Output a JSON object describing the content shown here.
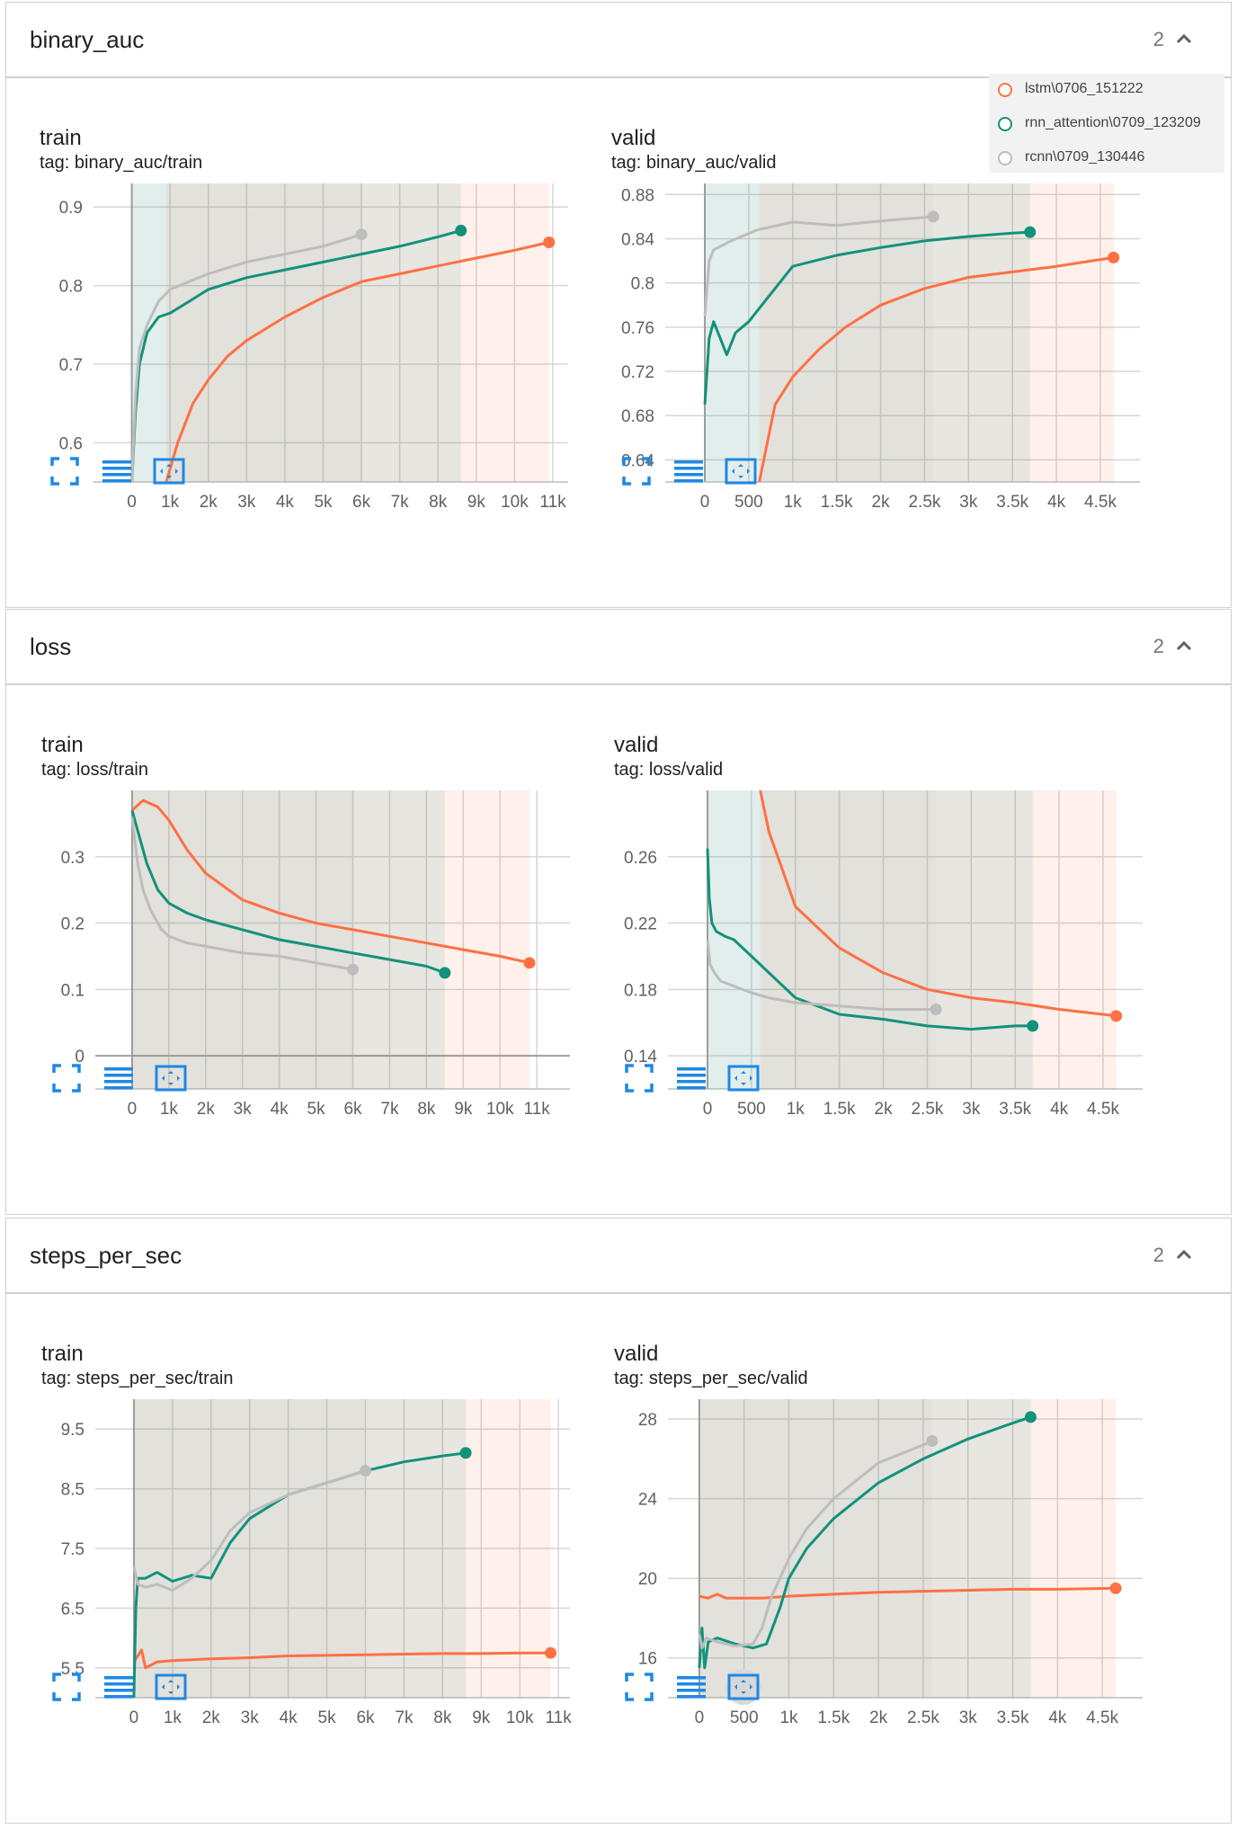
{
  "legend": [
    {
      "label": "lstm\\0706_151222",
      "color": "#ff7043"
    },
    {
      "label": "rnn_attention\\0709_123209",
      "color": "#12927a"
    },
    {
      "label": "rcnn\\0709_130446",
      "color": "#bdbdbd"
    }
  ],
  "buttons": {
    "icons": [
      "expand-icon",
      "list-lines-icon",
      "fit-domain-icon"
    ]
  },
  "sections": [
    {
      "title": "binary_auc",
      "count": "2"
    },
    {
      "title": "loss",
      "count": "2"
    },
    {
      "title": "steps_per_sec",
      "count": "2"
    }
  ],
  "chart_data": [
    {
      "type": "line",
      "title": "train",
      "tag": "tag: binary_auc/train",
      "xlim": [
        -1000,
        11400
      ],
      "ylim": [
        0.55,
        0.93
      ],
      "xticks": [
        0,
        1000,
        2000,
        3000,
        4000,
        5000,
        6000,
        7000,
        8000,
        9000,
        10000,
        11000
      ],
      "xtick_labels": [
        "0",
        "1k",
        "2k",
        "3k",
        "4k",
        "5k",
        "6k",
        "7k",
        "8k",
        "9k",
        "10k",
        "11k"
      ],
      "yticks": [
        0.6,
        0.7,
        0.8,
        0.9
      ],
      "ytick_labels": [
        "0.6",
        "0.7",
        "0.8",
        "0.9"
      ],
      "grid": true,
      "series": [
        {
          "name": "lstm\\0706_151222",
          "color": "#ff7043",
          "x": [
            900,
            1200,
            1600,
            2000,
            2500,
            3000,
            4000,
            5000,
            6000,
            7000,
            8000,
            9000,
            10000,
            10900
          ],
          "y": [
            0.55,
            0.6,
            0.65,
            0.68,
            0.71,
            0.73,
            0.76,
            0.785,
            0.805,
            0.815,
            0.825,
            0.835,
            0.845,
            0.855
          ]
        },
        {
          "name": "rnn_attention\\0709_123209",
          "color": "#12927a",
          "x": [
            0,
            100,
            200,
            400,
            700,
            1000,
            1500,
            2000,
            3000,
            4000,
            5000,
            6000,
            7000,
            8000,
            8600
          ],
          "y": [
            0.55,
            0.64,
            0.7,
            0.74,
            0.76,
            0.765,
            0.78,
            0.795,
            0.81,
            0.82,
            0.83,
            0.84,
            0.85,
            0.862,
            0.87
          ]
        },
        {
          "name": "rcnn\\0709_130446",
          "color": "#bdbdbd",
          "x": [
            0,
            100,
            200,
            400,
            700,
            1000,
            1500,
            2000,
            3000,
            4000,
            5000,
            6000
          ],
          "y": [
            0.55,
            0.66,
            0.72,
            0.75,
            0.78,
            0.795,
            0.805,
            0.815,
            0.83,
            0.84,
            0.85,
            0.865
          ]
        }
      ]
    },
    {
      "type": "line",
      "title": "valid",
      "tag": "tag: binary_auc/valid",
      "xlim": [
        -450,
        4950
      ],
      "ylim": [
        0.62,
        0.89
      ],
      "xticks": [
        0,
        500,
        1000,
        1500,
        2000,
        2500,
        3000,
        3500,
        4000,
        4500
      ],
      "xtick_labels": [
        "0",
        "500",
        "1k",
        "1.5k",
        "2k",
        "2.5k",
        "3k",
        "3.5k",
        "4k",
        "4.5k"
      ],
      "yticks": [
        0.64,
        0.68,
        0.72,
        0.76,
        0.8,
        0.84,
        0.88
      ],
      "ytick_labels": [
        "0.64",
        "0.68",
        "0.72",
        "0.76",
        "0.8",
        "0.84",
        "0.88"
      ],
      "grid": true,
      "series": [
        {
          "name": "lstm\\0706_151222",
          "color": "#ff7043",
          "x": [
            620,
            800,
            1000,
            1300,
            1600,
            2000,
            2500,
            3000,
            3500,
            4000,
            4650
          ],
          "y": [
            0.62,
            0.69,
            0.715,
            0.74,
            0.76,
            0.78,
            0.795,
            0.805,
            0.81,
            0.815,
            0.823
          ]
        },
        {
          "name": "rnn_attention\\0709_123209",
          "color": "#12927a",
          "x": [
            0,
            50,
            100,
            200,
            250,
            350,
            500,
            700,
            1000,
            1500,
            2000,
            2500,
            3000,
            3500,
            3700
          ],
          "y": [
            0.69,
            0.75,
            0.765,
            0.745,
            0.735,
            0.755,
            0.765,
            0.785,
            0.815,
            0.825,
            0.832,
            0.838,
            0.842,
            0.845,
            0.846
          ]
        },
        {
          "name": "rcnn\\0709_130446",
          "color": "#bdbdbd",
          "x": [
            0,
            50,
            100,
            300,
            600,
            1000,
            1500,
            2000,
            2600
          ],
          "y": [
            0.77,
            0.82,
            0.83,
            0.838,
            0.848,
            0.855,
            0.852,
            0.856,
            0.86
          ]
        }
      ]
    },
    {
      "type": "line",
      "title": "train",
      "tag": "tag: loss/train",
      "xlim": [
        -1000,
        11900
      ],
      "ylim": [
        -0.05,
        0.4
      ],
      "xticks": [
        0,
        1000,
        2000,
        3000,
        4000,
        5000,
        6000,
        7000,
        8000,
        9000,
        10000,
        11000
      ],
      "xtick_labels": [
        "0",
        "1k",
        "2k",
        "3k",
        "4k",
        "5k",
        "6k",
        "7k",
        "8k",
        "9k",
        "10k",
        "11k"
      ],
      "yticks": [
        0,
        0.1,
        0.2,
        0.3
      ],
      "ytick_labels": [
        "0",
        "0.1",
        "0.2",
        "0.3"
      ],
      "grid": true,
      "series": [
        {
          "name": "lstm\\0706_151222",
          "color": "#ff7043",
          "x": [
            0,
            300,
            700,
            1000,
            1500,
            2000,
            3000,
            4000,
            5000,
            6000,
            7000,
            8000,
            9000,
            10000,
            10800
          ],
          "y": [
            0.37,
            0.385,
            0.375,
            0.355,
            0.31,
            0.275,
            0.235,
            0.215,
            0.2,
            0.19,
            0.18,
            0.17,
            0.16,
            0.15,
            0.14
          ]
        },
        {
          "name": "rnn_attention\\0709_123209",
          "color": "#12927a",
          "x": [
            0,
            200,
            400,
            700,
            1000,
            1500,
            2000,
            3000,
            4000,
            5000,
            6000,
            7000,
            8000,
            8500
          ],
          "y": [
            0.37,
            0.33,
            0.29,
            0.25,
            0.23,
            0.215,
            0.205,
            0.19,
            0.175,
            0.165,
            0.155,
            0.145,
            0.135,
            0.125
          ]
        },
        {
          "name": "rcnn\\0709_130446",
          "color": "#bdbdbd",
          "x": [
            0,
            150,
            300,
            500,
            800,
            1000,
            1500,
            2000,
            3000,
            4000,
            5000,
            6000
          ],
          "y": [
            0.36,
            0.29,
            0.25,
            0.22,
            0.19,
            0.18,
            0.17,
            0.165,
            0.155,
            0.15,
            0.14,
            0.13
          ]
        }
      ]
    },
    {
      "type": "line",
      "title": "valid",
      "tag": "tag: loss/valid",
      "xlim": [
        -450,
        4950
      ],
      "ylim": [
        0.12,
        0.3
      ],
      "xticks": [
        0,
        500,
        1000,
        1500,
        2000,
        2500,
        3000,
        3500,
        4000,
        4500
      ],
      "xtick_labels": [
        "0",
        "500",
        "1k",
        "1.5k",
        "2k",
        "2.5k",
        "3k",
        "3.5k",
        "4k",
        "4.5k"
      ],
      "yticks": [
        0.14,
        0.18,
        0.22,
        0.26
      ],
      "ytick_labels": [
        "0.14",
        "0.18",
        "0.22",
        "0.26"
      ],
      "grid": true,
      "series": [
        {
          "name": "lstm\\0706_151222",
          "color": "#ff7043",
          "x": [
            600,
            700,
            900,
            1000,
            1200,
            1500,
            2000,
            2500,
            3000,
            3500,
            4000,
            4650
          ],
          "y": [
            0.3,
            0.275,
            0.245,
            0.23,
            0.22,
            0.205,
            0.19,
            0.18,
            0.175,
            0.172,
            0.168,
            0.164
          ]
        },
        {
          "name": "rnn_attention\\0709_123209",
          "color": "#12927a",
          "x": [
            0,
            20,
            50,
            100,
            200,
            300,
            500,
            700,
            1000,
            1500,
            2000,
            2500,
            3000,
            3500,
            3700
          ],
          "y": [
            0.265,
            0.235,
            0.22,
            0.215,
            0.212,
            0.21,
            0.2,
            0.19,
            0.175,
            0.165,
            0.162,
            0.158,
            0.156,
            0.158,
            0.158
          ]
        },
        {
          "name": "rcnn\\0709_130446",
          "color": "#bdbdbd",
          "x": [
            0,
            30,
            80,
            150,
            300,
            500,
            700,
            1000,
            1500,
            2000,
            2600
          ],
          "y": [
            0.21,
            0.195,
            0.19,
            0.185,
            0.182,
            0.178,
            0.175,
            0.172,
            0.17,
            0.168,
            0.168
          ]
        }
      ]
    },
    {
      "type": "line",
      "title": "train",
      "tag": "tag: steps_per_sec/train",
      "xlim": [
        -1000,
        11300
      ],
      "ylim": [
        5.0,
        10.0
      ],
      "xticks": [
        0,
        1000,
        2000,
        3000,
        4000,
        5000,
        6000,
        7000,
        8000,
        9000,
        10000,
        11000
      ],
      "xtick_labels": [
        "0",
        "1k",
        "2k",
        "3k",
        "4k",
        "5k",
        "6k",
        "7k",
        "8k",
        "9k",
        "10k",
        "11k"
      ],
      "yticks": [
        5.5,
        6.5,
        7.5,
        8.5,
        9.5
      ],
      "ytick_labels": [
        "5.5",
        "6.5",
        "7.5",
        "8.5",
        "9.5"
      ],
      "grid": true,
      "series": [
        {
          "name": "lstm\\0706_151222",
          "color": "#ff7043",
          "x": [
            0,
            200,
            300,
            600,
            1000,
            2000,
            3000,
            4000,
            5000,
            6000,
            7000,
            8000,
            9000,
            10000,
            10800
          ],
          "y": [
            5.6,
            5.8,
            5.5,
            5.6,
            5.62,
            5.65,
            5.67,
            5.7,
            5.71,
            5.72,
            5.73,
            5.74,
            5.74,
            5.75,
            5.75
          ]
        },
        {
          "name": "rnn_attention\\0709_123209",
          "color": "#12927a",
          "x": [
            0,
            50,
            100,
            300,
            600,
            1000,
            1500,
            2000,
            2500,
            3000,
            4000,
            5000,
            6000,
            7000,
            8000,
            8600
          ],
          "y": [
            5.0,
            6.5,
            7.0,
            7.0,
            7.1,
            6.95,
            7.05,
            7.0,
            7.6,
            8.0,
            8.4,
            8.6,
            8.8,
            8.95,
            9.05,
            9.1
          ]
        },
        {
          "name": "rcnn\\0709_130446",
          "color": "#bdbdbd",
          "x": [
            0,
            100,
            300,
            600,
            1000,
            1500,
            2000,
            2500,
            3000,
            4000,
            5000,
            6000
          ],
          "y": [
            7.2,
            6.9,
            6.85,
            6.9,
            6.8,
            7.0,
            7.3,
            7.8,
            8.1,
            8.4,
            8.6,
            8.8
          ]
        }
      ]
    },
    {
      "type": "line",
      "title": "valid",
      "tag": "tag: steps_per_sec/valid",
      "xlim": [
        -350,
        4950
      ],
      "ylim": [
        14.0,
        29.0
      ],
      "xticks": [
        0,
        500,
        1000,
        1500,
        2000,
        2500,
        3000,
        3500,
        4000,
        4500
      ],
      "xtick_labels": [
        "0",
        "500",
        "1k",
        "1.5k",
        "2k",
        "2.5k",
        "3k",
        "3.5k",
        "4k",
        "4.5k"
      ],
      "yticks": [
        16,
        20,
        24,
        28
      ],
      "ytick_labels": [
        "16",
        "20",
        "24",
        "28"
      ],
      "grid": true,
      "series": [
        {
          "name": "lstm\\0706_151222",
          "color": "#ff7043",
          "x": [
            0,
            100,
            200,
            300,
            500,
            700,
            1000,
            1500,
            2000,
            2500,
            3000,
            3500,
            4000,
            4650
          ],
          "y": [
            19.1,
            19.0,
            19.2,
            19.0,
            19.0,
            19.0,
            19.1,
            19.2,
            19.3,
            19.35,
            19.4,
            19.45,
            19.45,
            19.5
          ]
        },
        {
          "name": "rnn_attention\\0709_123209",
          "color": "#12927a",
          "x": [
            0,
            30,
            60,
            100,
            200,
            400,
            600,
            750,
            900,
            1000,
            1200,
            1500,
            2000,
            2500,
            3000,
            3500,
            3700
          ],
          "y": [
            15.5,
            17.5,
            15.5,
            16.8,
            17.0,
            16.7,
            16.5,
            16.7,
            18.5,
            20.0,
            21.5,
            23.0,
            24.8,
            26.0,
            27.0,
            27.8,
            28.1
          ]
        },
        {
          "name": "rcnn\\0709_130446",
          "color": "#bdbdbd",
          "x": [
            0,
            30,
            80,
            200,
            400,
            600,
            700,
            800,
            1000,
            1200,
            1500,
            2000,
            2500,
            2600
          ],
          "y": [
            17.2,
            16.5,
            17.0,
            16.8,
            16.6,
            16.7,
            17.5,
            19.0,
            21.0,
            22.5,
            24.0,
            25.8,
            26.7,
            26.9
          ]
        }
      ]
    }
  ]
}
